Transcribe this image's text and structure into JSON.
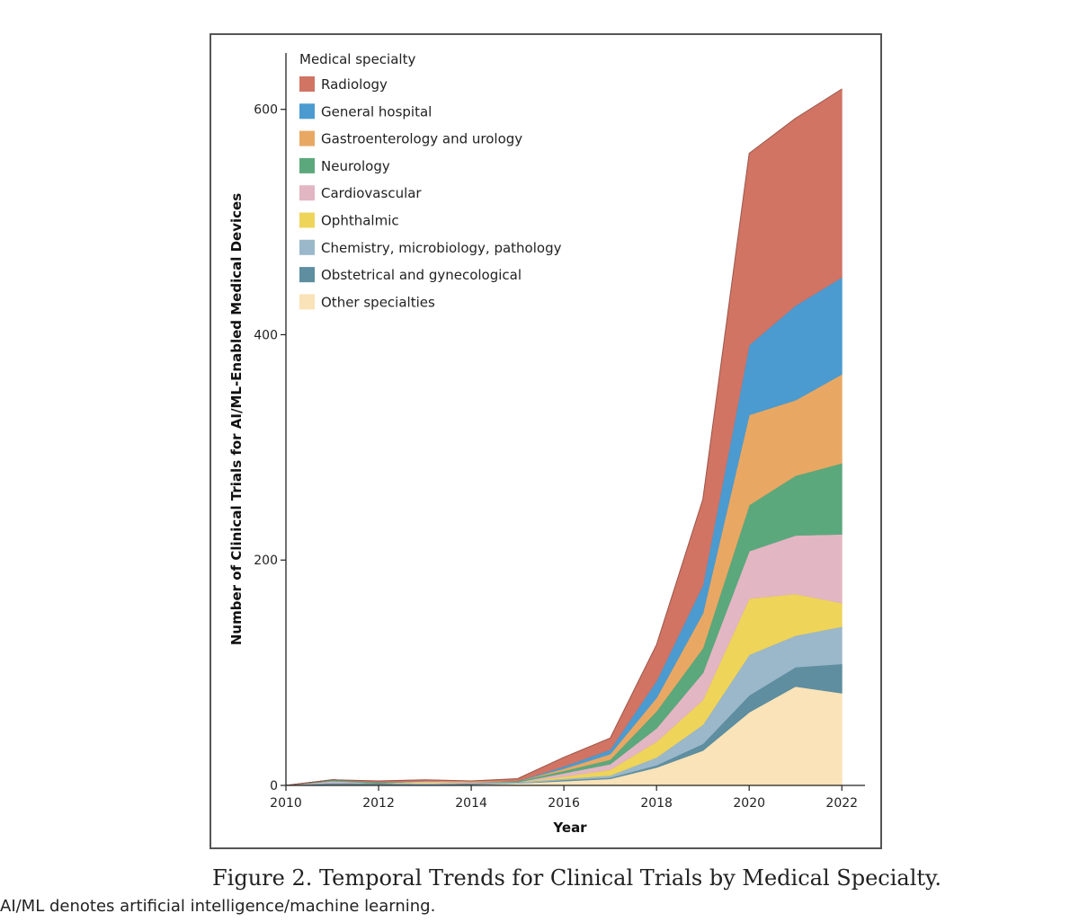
{
  "figure": {
    "caption": "Figure 2. Temporal Trends for Clinical Trials by Medical Specialty.",
    "footnote": "AI/ML denotes artificial intelligence/machine learning."
  },
  "chart_data": {
    "type": "area",
    "stacked": true,
    "title": "",
    "xlabel": "Year",
    "ylabel": "Number of Clinical Trials for AI/ML-Enabled Medical Devices",
    "xlim": [
      2010,
      2022.5
    ],
    "ylim": [
      0,
      650
    ],
    "x": [
      2010,
      2011,
      2012,
      2013,
      2014,
      2015,
      2016,
      2017,
      2018,
      2019,
      2020,
      2021,
      2022
    ],
    "x_ticks": [
      2010,
      2012,
      2014,
      2016,
      2018,
      2020,
      2022
    ],
    "y_ticks": [
      0,
      200,
      400,
      600
    ],
    "legend_title": "Medical specialty",
    "legend_position": "top-left",
    "series": [
      {
        "name": "Other specialties",
        "color": "#fae3b8",
        "values": [
          0,
          1,
          1,
          1,
          1,
          2,
          4,
          6,
          16,
          31,
          65,
          88,
          82
        ]
      },
      {
        "name": "Obstetrical and gynecological",
        "color": "#5e8ea0",
        "values": [
          0,
          1,
          1,
          0,
          1,
          0,
          1,
          1,
          2,
          6,
          15,
          17,
          26
        ]
      },
      {
        "name": "Chemistry, microbiology, pathology",
        "color": "#9ab8ca",
        "values": [
          0,
          1,
          0,
          1,
          0,
          1,
          1,
          2,
          7,
          17,
          36,
          28,
          33
        ]
      },
      {
        "name": "Ophthalmic",
        "color": "#efd45a",
        "values": [
          0,
          0,
          0,
          1,
          0,
          0,
          2,
          5,
          14,
          22,
          50,
          37,
          21
        ]
      },
      {
        "name": "Cardiovascular",
        "color": "#e2b6c2",
        "values": [
          0,
          1,
          0,
          1,
          1,
          0,
          3,
          5,
          12,
          24,
          42,
          52,
          61
        ]
      },
      {
        "name": "Neurology",
        "color": "#5ba87c",
        "values": [
          0,
          1,
          1,
          0,
          0,
          1,
          2,
          4,
          15,
          22,
          41,
          53,
          63
        ]
      },
      {
        "name": "Gastroenterology and urology",
        "color": "#e8a864",
        "values": [
          0,
          0,
          0,
          0,
          1,
          0,
          2,
          5,
          12,
          31,
          80,
          67,
          79
        ]
      },
      {
        "name": "General hospital",
        "color": "#4b9bd0",
        "values": [
          0,
          0,
          0,
          0,
          0,
          0,
          2,
          4,
          15,
          25,
          62,
          84,
          86
        ]
      },
      {
        "name": "Radiology",
        "color": "#d17464",
        "values": [
          0,
          0,
          1,
          1,
          0,
          2,
          8,
          10,
          32,
          76,
          170,
          166,
          167
        ]
      }
    ],
    "legend_order": [
      "Radiology",
      "General hospital",
      "Gastroenterology and urology",
      "Neurology",
      "Cardiovascular",
      "Ophthalmic",
      "Chemistry, microbiology, pathology",
      "Obstetrical and gynecological",
      "Other specialties"
    ]
  }
}
